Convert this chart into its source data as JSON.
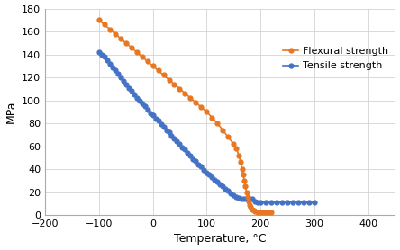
{
  "flexural_temp": [
    -100,
    -90,
    -80,
    -70,
    -60,
    -50,
    -40,
    -30,
    -20,
    -10,
    0,
    10,
    20,
    30,
    40,
    50,
    60,
    70,
    80,
    90,
    100,
    110,
    120,
    130,
    140,
    150,
    155,
    160,
    163,
    166,
    168,
    170,
    172,
    174,
    176,
    178,
    180,
    182,
    185,
    188,
    190,
    195,
    200,
    205,
    210,
    215,
    220
  ],
  "flexural_strength": [
    170,
    166,
    162,
    158,
    154,
    150,
    146,
    142,
    138,
    134,
    130,
    126,
    122,
    118,
    114,
    110,
    106,
    102,
    98,
    94,
    90,
    85,
    80,
    74,
    68,
    62,
    58,
    52,
    46,
    40,
    35,
    30,
    25,
    20,
    16,
    12,
    9,
    7,
    5,
    4,
    3,
    2,
    2,
    2,
    2,
    2,
    2
  ],
  "tensile_temp": [
    -100,
    -95,
    -90,
    -85,
    -80,
    -75,
    -70,
    -65,
    -60,
    -55,
    -50,
    -45,
    -40,
    -35,
    -30,
    -25,
    -20,
    -15,
    -10,
    -5,
    0,
    5,
    10,
    15,
    20,
    25,
    30,
    35,
    40,
    45,
    50,
    55,
    60,
    65,
    70,
    75,
    80,
    85,
    90,
    95,
    100,
    105,
    110,
    115,
    120,
    125,
    130,
    135,
    140,
    145,
    150,
    155,
    160,
    165,
    170,
    175,
    180,
    185,
    190,
    195,
    200,
    210,
    220,
    230,
    240,
    250,
    260,
    270,
    280,
    290,
    300
  ],
  "tensile_strength": [
    142,
    140,
    138,
    135,
    132,
    129,
    126,
    123,
    120,
    117,
    114,
    111,
    108,
    105,
    102,
    100,
    97,
    95,
    92,
    89,
    87,
    84,
    82,
    79,
    77,
    74,
    72,
    69,
    67,
    64,
    62,
    59,
    57,
    54,
    52,
    49,
    47,
    44,
    42,
    39,
    37,
    35,
    33,
    31,
    29,
    27,
    25,
    23,
    21,
    19,
    17,
    16,
    15,
    14,
    14,
    14,
    14,
    14,
    12,
    11,
    11,
    11,
    11,
    11,
    11,
    11,
    11,
    11,
    11,
    11,
    11
  ],
  "flexural_color": "#E87722",
  "tensile_color": "#4472C4",
  "background_color": "#ffffff",
  "grid_color": "#d3d3d3",
  "ylabel": "MPa",
  "xlabel": "Temperature, °C",
  "xlim": [
    -200,
    450
  ],
  "ylim": [
    0,
    180
  ],
  "xticks": [
    -200,
    -100,
    0,
    100,
    200,
    300,
    400
  ],
  "yticks": [
    0,
    20,
    40,
    60,
    80,
    100,
    120,
    140,
    160,
    180
  ],
  "legend_flexural": "Flexural strength",
  "legend_tensile": "Tensile strength",
  "marker": "o",
  "markersize": 3.5,
  "linewidth": 1.2
}
